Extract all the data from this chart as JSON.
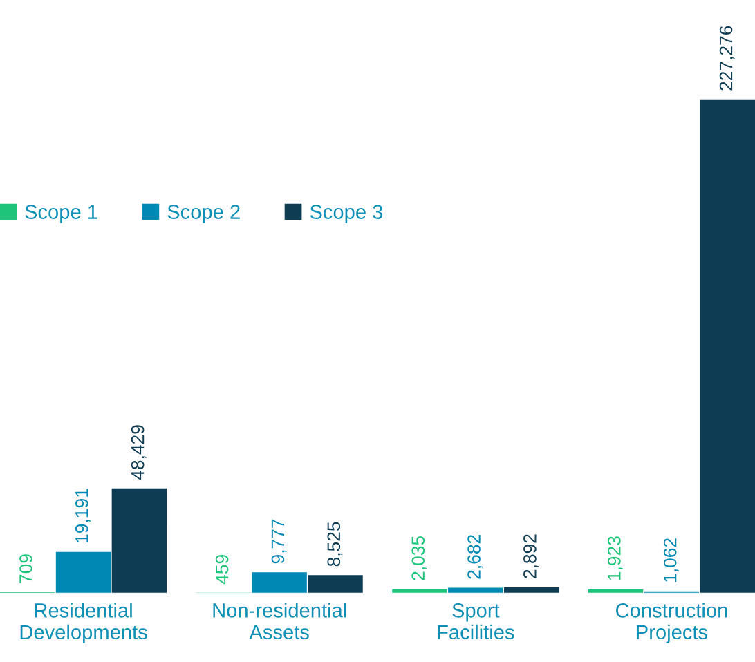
{
  "chart_data": {
    "type": "bar",
    "categories": [
      "Residential\nDevelopments",
      "Non-residential\nAssets",
      "Sport\nFacilities",
      "Construction\nProjects"
    ],
    "series": [
      {
        "name": "Scope 1",
        "color": "#1ec47a",
        "values": [
          709,
          459,
          2035,
          1923
        ],
        "value_labels": [
          "709",
          "459",
          "2,035",
          "1,923"
        ]
      },
      {
        "name": "Scope 2",
        "color": "#0088b5",
        "values": [
          19191,
          9777,
          2682,
          1062
        ],
        "value_labels": [
          "19,191",
          "9,777",
          "2,682",
          "1,062"
        ]
      },
      {
        "name": "Scope 3",
        "color": "#0e3c52",
        "values": [
          48429,
          8525,
          2892,
          227276
        ],
        "value_labels": [
          "48,429",
          "8,525",
          "2,892",
          "227,276"
        ]
      }
    ],
    "legend": "left",
    "grid": false
  }
}
